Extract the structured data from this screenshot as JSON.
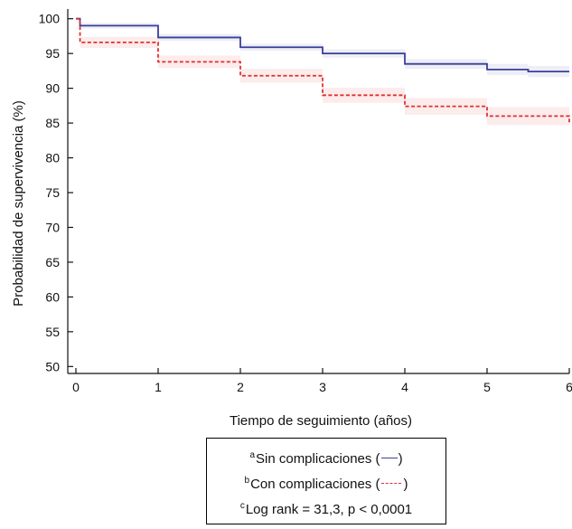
{
  "chart_data": {
    "type": "line",
    "title": "",
    "xlabel": "Tiempo de seguimiento (años)",
    "ylabel": "Probabilidad de supervivencia (%)",
    "xlim": [
      0,
      6
    ],
    "ylim": [
      49,
      101
    ],
    "x_ticks": [
      0,
      1,
      2,
      3,
      4,
      5,
      6
    ],
    "y_ticks": [
      50,
      55,
      60,
      65,
      70,
      75,
      80,
      85,
      90,
      95,
      100
    ],
    "grid": false,
    "step": true,
    "series": [
      {
        "key": "sin",
        "color": "#3a3f9a",
        "dash": "solid",
        "x": [
          0,
          0.05,
          1,
          2,
          3,
          4,
          5,
          5.5,
          6
        ],
        "y": [
          100,
          99,
          97.3,
          95.9,
          95,
          93.5,
          92.7,
          92.4,
          92.4
        ],
        "ci_upper": [
          100,
          99.4,
          97.8,
          96.4,
          95.6,
          94.2,
          93.5,
          93.2,
          93.2
        ],
        "ci_lower": [
          100,
          98.6,
          96.8,
          95.4,
          94.4,
          92.8,
          91.9,
          91.6,
          91.6
        ]
      },
      {
        "key": "con",
        "color": "#e03030",
        "dash": "dashed",
        "x": [
          0,
          0.05,
          1,
          2,
          3,
          4,
          5,
          6
        ],
        "y": [
          100,
          96.6,
          93.8,
          91.8,
          89,
          87.4,
          86,
          85
        ],
        "ci_upper": [
          100,
          97.4,
          94.7,
          92.8,
          90.1,
          88.6,
          87.3,
          86.4
        ],
        "ci_lower": [
          100,
          95.8,
          92.9,
          90.8,
          87.9,
          86.2,
          84.7,
          83.6
        ]
      }
    ]
  },
  "legend": {
    "row1": {
      "sup": "a",
      "text": "Sin complicaciones (",
      "close": ")"
    },
    "row2": {
      "sup": "b",
      "text": "Con complicaciones (",
      "close": ")"
    },
    "row3": {
      "sup": "c",
      "text": "Log rank = 31,3, p < 0,0001"
    }
  }
}
